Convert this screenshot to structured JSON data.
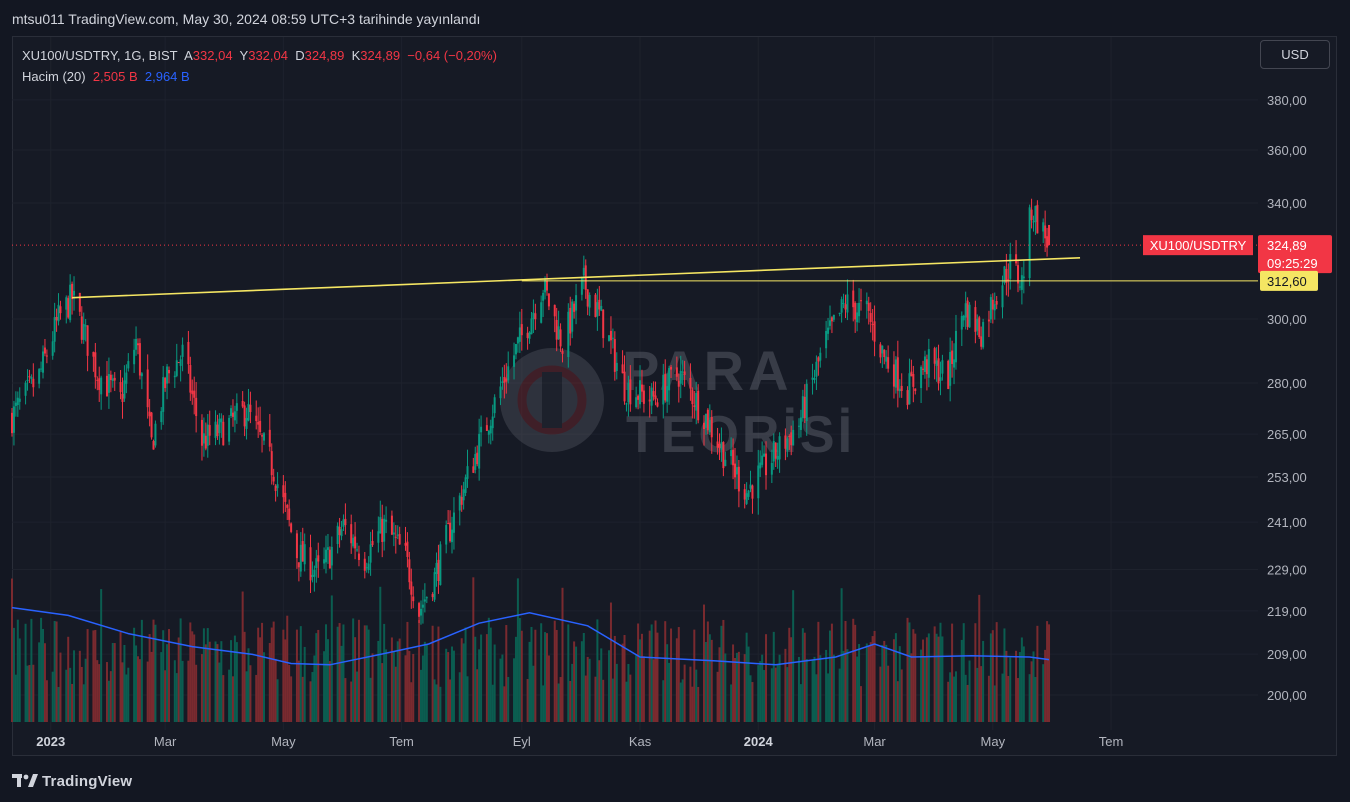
{
  "header": {
    "published_text": "mtsu011 TradingView.com, May 30, 2024 08:59 UTC+3 tarihinde yayınlandı"
  },
  "legend": {
    "symbol_line": "XU100/USDTRY, 1G, BIST",
    "open_label": "A",
    "open_value": "332,04",
    "high_label": "Y",
    "high_value": "332,04",
    "low_label": "D",
    "low_value": "324,89",
    "close_label": "K",
    "close_value": "324,89",
    "change": "−0,64 (−0,20%)",
    "volume_label": "Hacim (20)",
    "volume_value": "2,505 B",
    "volume_ma_value": "2,964 B"
  },
  "currency_button": "USD",
  "footer": {
    "brand": "TradingView"
  },
  "watermark": {
    "line1": "PARA",
    "line2": "TEORİSİ"
  },
  "colors": {
    "background": "#131722",
    "up": "#089981",
    "down": "#f23645",
    "ma": "#2962ff",
    "trendline": "#f5e663",
    "price_tag": "#f23645"
  },
  "chart_data": {
    "type": "candlestick",
    "symbol": "XU100/USDTRY",
    "interval": "1G",
    "exchange": "BIST",
    "y_axis": {
      "scale": "log",
      "ticks": [
        200,
        209,
        219,
        229,
        241,
        253,
        265,
        280,
        300,
        340,
        360,
        380
      ],
      "tick_labels": [
        "200,00",
        "209,00",
        "219,00",
        "229,00",
        "241,00",
        "253,00",
        "265,00",
        "280,00",
        "300,00",
        "340,00",
        "360,00",
        "380,00"
      ],
      "range": [
        196,
        392
      ]
    },
    "x_axis": {
      "tick_labels": [
        "2023",
        "Mar",
        "May",
        "Tem",
        "Eyl",
        "Kas",
        "2024",
        "Mar",
        "May",
        "Tem"
      ],
      "tick_dates": [
        "2023-01-01",
        "2023-03-01",
        "2023-05-01",
        "2023-07-01",
        "2023-09-01",
        "2023-11-01",
        "2024-01-01",
        "2024-03-01",
        "2024-05-01",
        "2024-07-01"
      ],
      "range": [
        "2022-12-12",
        "2024-07-18"
      ]
    },
    "price_path": [
      [
        "2022-12-12",
        270
      ],
      [
        "2022-12-26",
        282
      ],
      [
        "2023-01-05",
        300
      ],
      [
        "2023-01-12",
        307
      ],
      [
        "2023-01-25",
        283
      ],
      [
        "2023-02-06",
        275
      ],
      [
        "2023-02-14",
        293
      ],
      [
        "2023-02-22",
        262
      ],
      [
        "2023-03-02",
        282
      ],
      [
        "2023-03-10",
        289
      ],
      [
        "2023-03-20",
        263
      ],
      [
        "2023-03-30",
        266
      ],
      [
        "2023-04-12",
        272
      ],
      [
        "2023-04-26",
        255
      ],
      [
        "2023-05-08",
        233
      ],
      [
        "2023-05-20",
        228
      ],
      [
        "2023-06-01",
        240
      ],
      [
        "2023-06-12",
        232
      ],
      [
        "2023-06-22",
        240
      ],
      [
        "2023-07-03",
        232
      ],
      [
        "2023-07-10",
        219
      ],
      [
        "2023-07-18",
        227
      ],
      [
        "2023-07-31",
        247
      ],
      [
        "2023-08-10",
        262
      ],
      [
        "2023-08-24",
        283
      ],
      [
        "2023-09-05",
        300
      ],
      [
        "2023-09-12",
        311
      ],
      [
        "2023-09-22",
        292
      ],
      [
        "2023-10-03",
        312
      ],
      [
        "2023-10-12",
        300
      ],
      [
        "2023-10-24",
        279
      ],
      [
        "2023-11-07",
        275
      ],
      [
        "2023-11-21",
        283
      ],
      [
        "2023-12-04",
        271
      ],
      [
        "2023-12-14",
        260
      ],
      [
        "2023-12-26",
        249
      ],
      [
        "2024-01-08",
        258
      ],
      [
        "2024-01-22",
        268
      ],
      [
        "2024-02-05",
        293
      ],
      [
        "2024-02-15",
        305
      ],
      [
        "2024-02-26",
        302
      ],
      [
        "2024-03-06",
        288
      ],
      [
        "2024-03-18",
        278
      ],
      [
        "2024-03-28",
        286
      ],
      [
        "2024-04-08",
        282
      ],
      [
        "2024-04-16",
        304
      ],
      [
        "2024-04-25",
        296
      ],
      [
        "2024-05-02",
        308
      ],
      [
        "2024-05-10",
        318
      ],
      [
        "2024-05-16",
        312
      ],
      [
        "2024-05-21",
        338
      ],
      [
        "2024-05-24",
        334
      ],
      [
        "2024-05-30",
        324.89
      ]
    ],
    "last_candle": {
      "open": 332.04,
      "high": 332.04,
      "low": 324.89,
      "close": 324.89,
      "change": -0.64,
      "change_pct": -0.2
    },
    "current_price_label": "324,89",
    "countdown_label": "09:25:29",
    "symbol_tag": "XU100/USDTRY",
    "horizontal_level": {
      "value": 312.6,
      "label": "312,60"
    },
    "trendline": {
      "from": {
        "date": "2023-01-12",
        "value": 307
      },
      "to": {
        "date": "2024-06-15",
        "value": 320.5
      }
    },
    "volume_ma_path": [
      [
        "2022-12-12",
        0.88
      ],
      [
        "2023-01-10",
        0.82
      ],
      [
        "2023-02-10",
        0.68
      ],
      [
        "2023-03-15",
        0.58
      ],
      [
        "2023-04-15",
        0.52
      ],
      [
        "2023-05-05",
        0.45
      ],
      [
        "2023-05-25",
        0.44
      ],
      [
        "2023-06-20",
        0.52
      ],
      [
        "2023-07-15",
        0.6
      ],
      [
        "2023-08-10",
        0.76
      ],
      [
        "2023-09-05",
        0.84
      ],
      [
        "2023-10-05",
        0.74
      ],
      [
        "2023-11-01",
        0.5
      ],
      [
        "2023-12-10",
        0.47
      ],
      [
        "2024-01-10",
        0.44
      ],
      [
        "2024-02-10",
        0.5
      ],
      [
        "2024-03-01",
        0.6
      ],
      [
        "2024-03-20",
        0.5
      ],
      [
        "2024-04-20",
        0.51
      ],
      [
        "2024-05-20",
        0.5
      ],
      [
        "2024-05-30",
        0.48
      ]
    ]
  }
}
